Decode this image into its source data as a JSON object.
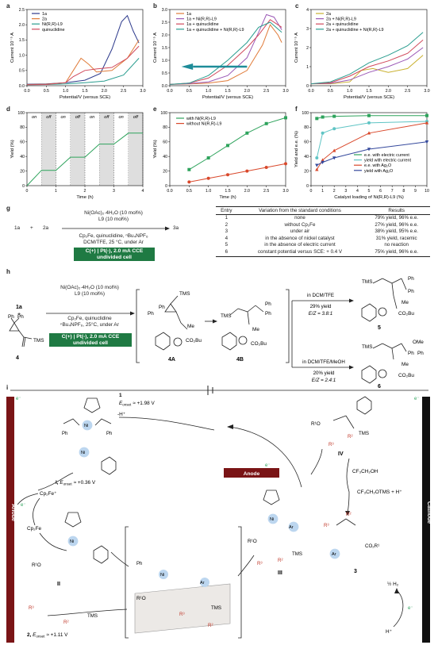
{
  "panels": {
    "a": "a",
    "b": "b",
    "c": "c",
    "d": "d",
    "e": "e",
    "f": "f",
    "g": "g",
    "h": "h",
    "i": "i"
  },
  "axis_text": {
    "current": "Current 10⁻⁵ A",
    "potential": "Potential/V (versus SCE)",
    "yield": "Yield (%)",
    "time": "Time (h)",
    "yield_ee": "Yield and e.e. (%)",
    "catalyst": "Catalyst loading of Ni(R,R)-L9 (%)",
    "on": "on",
    "off": "off"
  },
  "chart_data": [
    {
      "type": "line",
      "panel": "a",
      "xlabel": "Potential/V (versus SCE)",
      "ylabel": "Current 10⁻⁵ A",
      "xlim": [
        0,
        3.0
      ],
      "ylim": [
        0,
        2.5
      ],
      "x_ticks": [
        "0.0",
        "0.5",
        "1.0",
        "1.5",
        "2.0",
        "2.5",
        "3.0"
      ],
      "y_ticks": [
        "0.0",
        "0.5",
        "1.0",
        "1.5",
        "2.0",
        "2.5"
      ],
      "series": [
        {
          "name": "1a",
          "color": "#2d3a8c",
          "x": [
            0,
            0.5,
            1.0,
            1.5,
            1.9,
            2.2,
            2.45,
            2.6,
            2.75,
            2.9
          ],
          "y": [
            0.05,
            0.06,
            0.1,
            0.18,
            0.4,
            1.2,
            2.1,
            2.3,
            1.8,
            1.4
          ]
        },
        {
          "name": "2a",
          "color": "#e07b39",
          "x": [
            0,
            0.5,
            1.0,
            1.2,
            1.4,
            1.6,
            1.8,
            2.2,
            2.6,
            2.9
          ],
          "y": [
            0.04,
            0.05,
            0.1,
            0.5,
            0.9,
            0.7,
            0.45,
            0.5,
            0.9,
            1.5
          ]
        },
        {
          "name": "Ni(R,R)-L9",
          "color": "#2a9d8f",
          "x": [
            0,
            0.5,
            1.0,
            1.5,
            2.0,
            2.5,
            2.9
          ],
          "y": [
            0.03,
            0.04,
            0.06,
            0.1,
            0.15,
            0.35,
            0.9
          ]
        },
        {
          "name": "quinuclidine",
          "color": "#d1495b",
          "x": [
            0,
            0.5,
            1.0,
            1.2,
            1.5,
            1.8,
            2.2,
            2.6,
            2.9
          ],
          "y": [
            0.03,
            0.04,
            0.1,
            0.3,
            0.5,
            0.55,
            0.6,
            0.9,
            1.3
          ]
        }
      ]
    },
    {
      "type": "line",
      "panel": "b",
      "xlabel": "Potential/V (versus SCE)",
      "ylabel": "Current 10⁻⁵ A",
      "xlim": [
        0,
        3.0
      ],
      "ylim": [
        0,
        3.0
      ],
      "x_ticks": [
        "0.0",
        "0.5",
        "1.0",
        "1.5",
        "2.0",
        "2.5",
        "3.0"
      ],
      "y_ticks": [
        "0.0",
        "0.5",
        "1.0",
        "1.5",
        "2.0",
        "2.5",
        "3.0"
      ],
      "series": [
        {
          "name": "1a",
          "color": "#e07b39",
          "x": [
            0,
            0.5,
            1.0,
            1.5,
            2.0,
            2.4,
            2.6,
            2.8,
            2.9
          ],
          "y": [
            0.05,
            0.07,
            0.1,
            0.2,
            0.6,
            1.6,
            2.4,
            2.0,
            1.7
          ]
        },
        {
          "name": "1a + Ni(R,R)-L9",
          "color": "#9b59b6",
          "x": [
            0,
            0.5,
            1.0,
            1.5,
            2.0,
            2.3,
            2.5,
            2.7,
            2.9
          ],
          "y": [
            0.05,
            0.08,
            0.15,
            0.4,
            1.1,
            2.1,
            2.8,
            2.7,
            2.2
          ]
        },
        {
          "name": "1a + quinuclidine",
          "color": "#d1495b",
          "x": [
            0,
            0.5,
            1.0,
            1.5,
            2.0,
            2.3,
            2.6,
            2.9
          ],
          "y": [
            0.05,
            0.1,
            0.3,
            0.8,
            1.5,
            2.0,
            2.6,
            2.3
          ]
        },
        {
          "name": "1a + quinuclidine + Ni(R,R)-L9",
          "color": "#2a9d8f",
          "x": [
            0,
            0.5,
            1.0,
            1.5,
            2.0,
            2.3,
            2.6,
            2.9
          ],
          "y": [
            0.05,
            0.1,
            0.4,
            1.0,
            1.7,
            2.3,
            2.5,
            2.1
          ]
        }
      ]
    },
    {
      "type": "line",
      "panel": "c",
      "xlabel": "Potential/V (versus SCE)",
      "ylabel": "Current 10⁻⁵ A",
      "xlim": [
        0,
        3.0
      ],
      "ylim": [
        0,
        4
      ],
      "x_ticks": [
        "0.0",
        "0.5",
        "1.0",
        "1.5",
        "2.0",
        "2.5",
        "3.0"
      ],
      "y_ticks": [
        "0",
        "1",
        "2",
        "3",
        "4"
      ],
      "series": [
        {
          "name": "2a",
          "color": "#c9b02e",
          "x": [
            0,
            0.5,
            1.0,
            1.3,
            1.6,
            2.0,
            2.5,
            2.9
          ],
          "y": [
            0.1,
            0.1,
            0.2,
            0.8,
            0.9,
            0.7,
            0.9,
            1.6
          ]
        },
        {
          "name": "2a + Ni(R,R)-L9",
          "color": "#9b59b6",
          "x": [
            0,
            0.5,
            1.0,
            1.5,
            2.0,
            2.5,
            2.9
          ],
          "y": [
            0.1,
            0.12,
            0.3,
            0.7,
            1.0,
            1.4,
            2.0
          ]
        },
        {
          "name": "2a + quinuclidine",
          "color": "#d1495b",
          "x": [
            0,
            0.5,
            1.0,
            1.5,
            2.0,
            2.5,
            2.9
          ],
          "y": [
            0.1,
            0.15,
            0.5,
            1.0,
            1.3,
            1.7,
            2.4
          ]
        },
        {
          "name": "2a + quinuclidine + Ni(R,R)-L9",
          "color": "#2a9d8f",
          "x": [
            0,
            0.5,
            1.0,
            1.5,
            2.0,
            2.5,
            2.9
          ],
          "y": [
            0.1,
            0.2,
            0.6,
            1.2,
            1.6,
            2.1,
            2.8
          ]
        }
      ]
    },
    {
      "type": "line",
      "panel": "d",
      "xlabel": "Time (h)",
      "ylabel": "Yield (%)",
      "xlim": [
        0,
        4
      ],
      "ylim": [
        0,
        100
      ],
      "x_ticks": [
        "0",
        "1",
        "2",
        "3",
        "4"
      ],
      "y_ticks": [
        "0",
        "20",
        "40",
        "60",
        "80",
        "100"
      ],
      "on_off": [
        "on",
        "off",
        "on",
        "off",
        "on",
        "off",
        "on",
        "off"
      ],
      "series": [
        {
          "name": "",
          "color": "#2ea35c",
          "x": [
            0,
            0.5,
            0.5,
            1,
            1,
            1.5,
            1.5,
            2,
            2,
            2.5,
            2.5,
            3,
            3,
            3.5,
            3.5,
            4
          ],
          "y": [
            0,
            21,
            21,
            21,
            21,
            39,
            39,
            39,
            39,
            57,
            57,
            57,
            57,
            72,
            72,
            72
          ]
        }
      ]
    },
    {
      "type": "line",
      "panel": "e",
      "xlabel": "Time (h)",
      "ylabel": "Yield (%)",
      "xlim": [
        0,
        3.0
      ],
      "ylim": [
        0,
        100
      ],
      "x_ticks": [
        "0.0",
        "0.5",
        "1.0",
        "1.5",
        "2.0",
        "2.5",
        "3.0"
      ],
      "y_ticks": [
        "0",
        "20",
        "40",
        "60",
        "80",
        "100"
      ],
      "series": [
        {
          "name": "with Ni(R,R)-L9",
          "color": "#2ea35c",
          "marker": "square",
          "x": [
            0.5,
            1.0,
            1.5,
            2.0,
            2.5,
            3.0
          ],
          "y": [
            22,
            38,
            55,
            72,
            85,
            93
          ]
        },
        {
          "name": "without Ni(R,R)-L9",
          "color": "#d9482b",
          "marker": "circle",
          "x": [
            0.5,
            1.0,
            1.5,
            2.0,
            2.5,
            3.0
          ],
          "y": [
            5,
            10,
            15,
            20,
            25,
            30
          ]
        }
      ]
    },
    {
      "type": "line",
      "panel": "f",
      "xlabel": "Catalyst loading of Ni(R,R)-L9 (%)",
      "ylabel": "Yield and e.e. (%)",
      "xlim": [
        0,
        10
      ],
      "ylim": [
        0,
        100
      ],
      "x_ticks": [
        "0",
        "1",
        "2",
        "3",
        "4",
        "5",
        "6",
        "7",
        "8",
        "9",
        "10"
      ],
      "y_ticks": [
        "0",
        "20",
        "40",
        "60",
        "80",
        "100"
      ],
      "series": [
        {
          "name": "e.e. with electric current",
          "color": "#2ea35c",
          "marker": "square",
          "x": [
            0.5,
            1,
            2,
            5,
            10
          ],
          "y": [
            92,
            94,
            95,
            96,
            96
          ]
        },
        {
          "name": "yield with electric current",
          "color": "#5fc4c4",
          "marker": "circle",
          "x": [
            0.5,
            1,
            2,
            5,
            10
          ],
          "y": [
            38,
            72,
            78,
            86,
            88
          ]
        },
        {
          "name": "e.e. with Ag₂O",
          "color": "#d9482b",
          "marker": "triangle",
          "x": [
            0.5,
            1,
            2,
            5,
            10
          ],
          "y": [
            22,
            35,
            48,
            72,
            86
          ]
        },
        {
          "name": "yield with Ag₂O",
          "color": "#34489c",
          "marker": "triangle-down",
          "x": [
            0.5,
            1,
            2,
            5,
            10
          ],
          "y": [
            28,
            32,
            38,
            50,
            60
          ]
        }
      ]
    }
  ],
  "g": {
    "reagents": [
      "1a",
      "+",
      "2a",
      "3a"
    ],
    "above": [
      "Ni(OAc)₂·4H₂O (10 mol%)",
      "L9 (10 mol%)"
    ],
    "below": [
      "Cp₂Fe, quinuclidine, ⁿBu₄NPF₆",
      "DCM/TFE, 25 °C, under Ar"
    ],
    "cce": [
      "C(+) | Pt(-), 2.0 mA CCE",
      "undivided cell"
    ],
    "table_header": [
      "Entry",
      "Variation from the standard conditions",
      "Results"
    ],
    "table_rows": [
      [
        "1",
        "none",
        "79% yield, 96% e.e."
      ],
      [
        "2",
        "without Cp₂Fe",
        "27% yield, 96% e.e."
      ],
      [
        "3",
        "under air",
        "38% yield, 95% e.e."
      ],
      [
        "4",
        "in the absence of nickel catalyst",
        "31% yield, racemic"
      ],
      [
        "5",
        "in the absence of electric current",
        "no reaction"
      ],
      [
        "6",
        "constant potential versus SCE: + 0.4 V",
        "75% yield, 96% e.e."
      ]
    ]
  },
  "h": {
    "labels": {
      "s1a": "1a",
      "plus": "+",
      "s4": "4",
      "i4A": "4A",
      "i4B": "4B",
      "p5": "5",
      "p6": "6"
    },
    "above": [
      "Ni(OAc)₂·4H₂O (10 mol%)",
      "L9 (10 mol%)"
    ],
    "below": [
      "Cp₂Fe, quinuclidine",
      "ⁿBu₄NPF₆, 25°C, under Ar"
    ],
    "cce": [
      "C(+) | Pt(-), 2.0 mA CCE",
      "undivided cell"
    ],
    "upper": [
      "in DCM/TFE",
      "29% yield",
      "E/Z = 3.8:1"
    ],
    "lower": [
      "in DCM/TFE/MeOH",
      "20% yield",
      "E/Z = 2.4:1"
    ],
    "groups": {
      "tms": "TMS",
      "ph": "Ph",
      "me": "Me",
      "co2bu": "CO₂Bu",
      "ome": "OMe"
    }
  },
  "i": {
    "anode": "Anode",
    "cathode": "Cathode",
    "anode_mid": "Anode",
    "onset1": [
      "1",
      "E",
      "onset",
      "≈ +1.98 V"
    ],
    "minus_h": "-H⁺",
    "I": [
      "I, ",
      "E",
      "onset",
      "≈ +0.36 V"
    ],
    "onset2": [
      "2, ",
      "E",
      "onset",
      "≈ +1.11 V"
    ],
    "cp2fe_plus": "Cp₂Fe⁺",
    "cp2fe": "Cp₂Fe",
    "e": "e⁻",
    "II": "II",
    "III": "III",
    "IV": "IV",
    "three": "3",
    "cf3ch2oh": "CF₃CH₂OH",
    "cf3otms": "CF₃CH₂OTMS + H⁺",
    "half_h2": "½ H₂",
    "hplus": "H⁺",
    "ni": "Ni",
    "ar": "Ar",
    "ph": "Ph",
    "n": "N",
    "o": "O",
    "r1o": "R¹O",
    "r2": "R²",
    "r3": "R³",
    "tms": "TMS",
    "co2r1": "CO₂R¹"
  }
}
